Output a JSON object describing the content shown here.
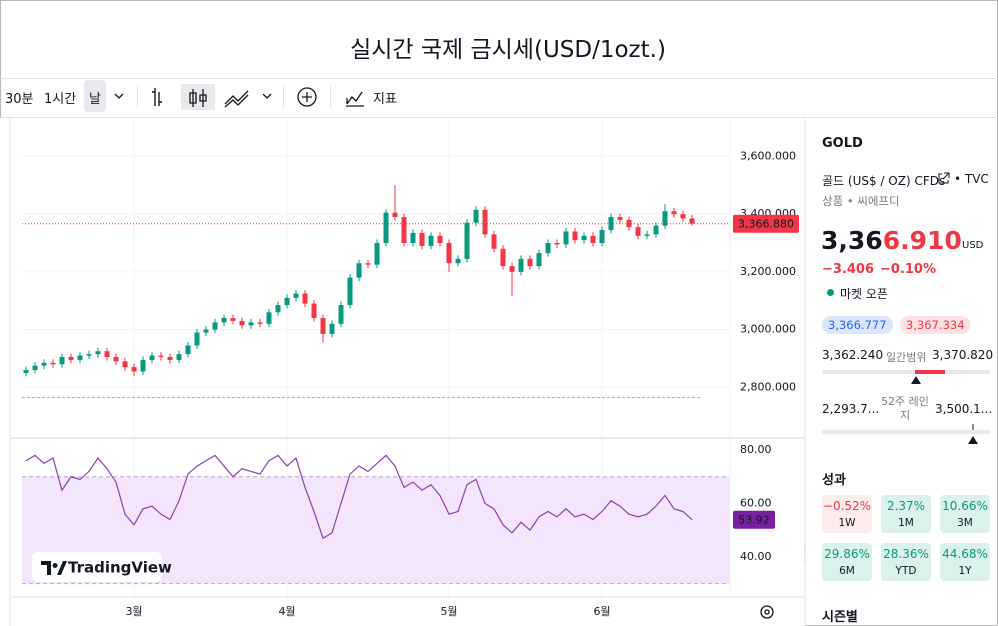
{
  "header": {
    "title": "실시간 국제 금시세(USD/1ozt.)"
  },
  "toolbar": {
    "intervals": [
      "30분",
      "1시간",
      "날"
    ],
    "indicators": "지표"
  },
  "watermark": "TradingView",
  "chart_data": {
    "type": "candlestick",
    "categories": [
      null,
      null,
      null,
      null,
      null,
      null,
      null,
      null,
      null,
      null,
      null,
      null,
      "3월",
      null,
      null,
      null,
      null,
      null,
      null,
      null,
      null,
      null,
      null,
      null,
      null,
      null,
      null,
      null,
      null,
      "4월",
      null,
      null,
      null,
      null,
      null,
      null,
      null,
      null,
      null,
      null,
      null,
      null,
      null,
      null,
      null,
      null,
      null,
      "5월",
      null,
      null,
      null,
      null,
      null,
      null,
      null,
      null,
      null,
      null,
      null,
      null,
      null,
      null,
      null,
      null,
      "6월",
      null,
      null,
      null,
      null,
      null,
      null,
      null,
      null,
      null,
      null
    ],
    "open": [
      2850,
      2860,
      2875,
      2885,
      2880,
      2905,
      2895,
      2910,
      2915,
      2925,
      2905,
      2890,
      2870,
      2855,
      2895,
      2910,
      2905,
      2895,
      2915,
      2945,
      2990,
      3000,
      3025,
      3040,
      3030,
      3015,
      3025,
      3020,
      3060,
      3085,
      3110,
      3125,
      3090,
      3040,
      2985,
      3020,
      3085,
      3180,
      3230,
      3225,
      3300,
      3405,
      3390,
      3300,
      3335,
      3290,
      3325,
      3300,
      3230,
      3245,
      3370,
      3415,
      3330,
      3280,
      3220,
      3200,
      3245,
      3220,
      3265,
      3300,
      3295,
      3340,
      3310,
      3325,
      3300,
      3345,
      3390,
      3380,
      3355,
      3325,
      3330,
      3360,
      3410,
      3400,
      3385
    ],
    "high": [
      2872,
      2887,
      2897,
      2897,
      2917,
      2917,
      2922,
      2927,
      2937,
      2937,
      2917,
      2902,
      2882,
      2907,
      2922,
      2922,
      2917,
      2927,
      2957,
      3002,
      3012,
      3037,
      3052,
      3052,
      3042,
      3037,
      3037,
      3072,
      3097,
      3122,
      3137,
      3137,
      3102,
      3052,
      3032,
      3097,
      3192,
      3242,
      3242,
      3312,
      3417,
      3500,
      3402,
      3347,
      3347,
      3337,
      3337,
      3312,
      3257,
      3382,
      3427,
      3427,
      3342,
      3292,
      3232,
      3257,
      3257,
      3277,
      3312,
      3312,
      3352,
      3352,
      3337,
      3337,
      3357,
      3402,
      3402,
      3392,
      3367,
      3342,
      3372,
      3435,
      3422,
      3412,
      3397
    ],
    "low": [
      2838,
      2848,
      2863,
      2868,
      2868,
      2883,
      2883,
      2898,
      2903,
      2893,
      2878,
      2858,
      2840,
      2843,
      2883,
      2893,
      2883,
      2883,
      2903,
      2933,
      2978,
      2988,
      3013,
      3018,
      3003,
      3003,
      3008,
      3008,
      3048,
      3073,
      3098,
      3078,
      3028,
      2955,
      2973,
      3008,
      3073,
      3168,
      3213,
      3213,
      3288,
      3378,
      3288,
      3288,
      3278,
      3278,
      3288,
      3200,
      3218,
      3233,
      3358,
      3318,
      3268,
      3208,
      3115,
      3188,
      3208,
      3208,
      3253,
      3283,
      3283,
      3298,
      3298,
      3288,
      3288,
      3333,
      3368,
      3343,
      3313,
      3313,
      3318,
      3348,
      3388,
      3373,
      3360
    ],
    "close": [
      2860,
      2875,
      2885,
      2880,
      2905,
      2895,
      2910,
      2915,
      2925,
      2905,
      2890,
      2870,
      2855,
      2895,
      2910,
      2905,
      2895,
      2915,
      2945,
      2990,
      3000,
      3025,
      3040,
      3030,
      3015,
      3025,
      3020,
      3060,
      3085,
      3110,
      3125,
      3090,
      3040,
      2985,
      3020,
      3085,
      3180,
      3230,
      3225,
      3300,
      3405,
      3390,
      3300,
      3335,
      3290,
      3325,
      3300,
      3230,
      3245,
      3370,
      3415,
      3330,
      3280,
      3220,
      3200,
      3245,
      3220,
      3265,
      3300,
      3295,
      3340,
      3310,
      3325,
      3300,
      3345,
      3390,
      3380,
      3355,
      3325,
      3330,
      3360,
      3410,
      3400,
      3385,
      3367
    ],
    "up_color": "#089981",
    "down_color": "#f23645",
    "ylim": [
      2628,
      3733
    ],
    "yticks": [
      {
        "value": 2800,
        "label": "2,800.000"
      },
      {
        "value": 3000,
        "label": "3,000.000"
      },
      {
        "value": 3200,
        "label": "3,200.000"
      },
      {
        "value": 3400,
        "label": "3,400.000"
      },
      {
        "value": 3600,
        "label": "3,600.000"
      }
    ],
    "grid": true,
    "last_value": 3366.88,
    "last_value_label": "3,366.880",
    "reference_line": 2765,
    "rsi": {
      "type": "line",
      "color": "#8e3fb0",
      "values": [
        76,
        78,
        75,
        77,
        65,
        70,
        69,
        72,
        77,
        73,
        68,
        56,
        52,
        58,
        59,
        56,
        54,
        61,
        71,
        74,
        76,
        78,
        74,
        70,
        73,
        72,
        71,
        76,
        78,
        74,
        77,
        66,
        57,
        47,
        49,
        60,
        71,
        74,
        72,
        75,
        78,
        74,
        66,
        68,
        65,
        67,
        63,
        56,
        57,
        67,
        69,
        60,
        58,
        52,
        49,
        53,
        50,
        55,
        57,
        55,
        58,
        55,
        56,
        54,
        57,
        61,
        59,
        56,
        55,
        56,
        59,
        63,
        58,
        57,
        53.92
      ],
      "last_label": "53.92",
      "ylim": [
        25,
        84.5
      ],
      "yticks": [
        {
          "value": 40,
          "label": "40.00"
        },
        {
          "value": 60,
          "label": "60.00"
        },
        {
          "value": 80,
          "label": "80.00"
        }
      ],
      "bands": [
        70,
        30
      ]
    }
  },
  "sidebar": {
    "symbol": "GOLD",
    "description": "골드 (US$ / OZ) CFDs",
    "source": "• TVC",
    "category": "상품 • 씨에프디",
    "price_unchanged": "3,36",
    "price_changed": "6.910",
    "currency": "USD",
    "change": "−3.406",
    "change_percent": "−0.10%",
    "status": "마켓 오픈",
    "bid": "3,366.777",
    "ask": "3,367.334",
    "day_range": {
      "low": "3,362.240",
      "label": "일간범위",
      "high": "3,370.820"
    },
    "week52_range": {
      "low": "2,293.7...",
      "label": "52주 레인지",
      "high": "3,500.1..."
    },
    "performance": {
      "title": "성과",
      "items": [
        {
          "value": "−0.52%",
          "period": "1W",
          "tone": "negative"
        },
        {
          "value": "2.37%",
          "period": "1M",
          "tone": "positive"
        },
        {
          "value": "10.66%",
          "period": "3M",
          "tone": "positive"
        },
        {
          "value": "29.86%",
          "period": "6M",
          "tone": "positive"
        },
        {
          "value": "28.36%",
          "period": "YTD",
          "tone": "positive"
        },
        {
          "value": "44.68%",
          "period": "1Y",
          "tone": "positive"
        }
      ]
    },
    "seasonals": "시즌별"
  }
}
